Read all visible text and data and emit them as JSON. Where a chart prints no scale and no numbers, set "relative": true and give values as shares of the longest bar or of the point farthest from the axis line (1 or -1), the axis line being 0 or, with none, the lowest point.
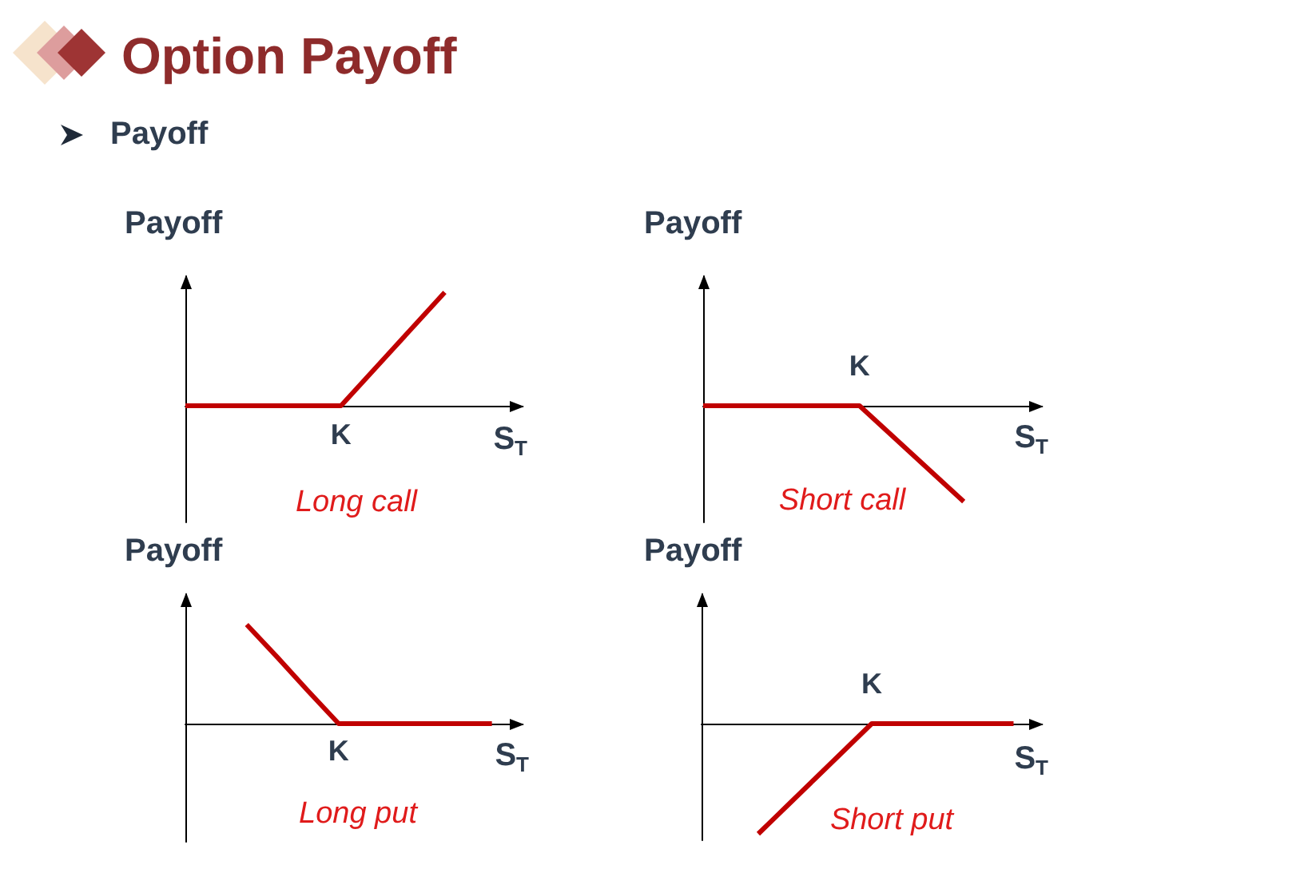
{
  "chart_data": [
    {
      "type": "line",
      "title": "Option Payoff",
      "subtitle": "Payoff",
      "ylabel": "Payoff",
      "xlabel": "S$_{T}$",
      "categories": [
        null,
        null,
        null,
        null,
        null,
        null,
        null,
        null,
        null,
        null,
        null,
        null,
        null,
        null
      ],
      "values": [
        0,
        0,
        0,
        0,
        0,
        0,
        0,
        0.25,
        0.5,
        0.75,
        1,
        null,
        null,
        null
      ],
      "color": "#c00000",
      "relative": true,
      "annotations": [
        "K",
        "Long call"
      ]
    },
    {
      "type": "line",
      "ylabel": "Payoff",
      "xlabel": "S$_{T}$",
      "categories": [
        null,
        null,
        null,
        null,
        null,
        null,
        null,
        null,
        null,
        null,
        null,
        null,
        null,
        null
      ],
      "values": [
        0,
        0,
        0,
        0,
        0,
        0,
        0,
        -0.25,
        -0.5,
        -0.75,
        -1,
        null,
        null,
        null
      ],
      "color": "#c00000",
      "relative": true,
      "annotations": [
        "K",
        "Short call"
      ]
    },
    {
      "type": "line",
      "ylabel": "Payoff",
      "xlabel": "S$_{T}$",
      "categories": [
        null,
        null,
        null,
        null,
        null,
        null,
        null,
        null,
        null,
        null,
        null,
        null
      ],
      "values": [
        null,
        null,
        1,
        0.67,
        0.33,
        0,
        0,
        0,
        0,
        0,
        0,
        null
      ],
      "color": "#c00000",
      "relative": true,
      "annotations": [
        "K",
        "Long put"
      ]
    },
    {
      "type": "line",
      "ylabel": "Payoff",
      "xlabel": "S$_{T}$",
      "categories": [
        null,
        null,
        null,
        null,
        null,
        null,
        null,
        null,
        null,
        null,
        null,
        null,
        null
      ],
      "values": [
        null,
        null,
        -1,
        -0.75,
        -0.5,
        -0.25,
        0,
        0,
        0,
        0,
        0,
        0,
        null
      ],
      "color": "#c00000",
      "relative": true,
      "annotations": [
        "K",
        "Short put"
      ]
    }
  ]
}
